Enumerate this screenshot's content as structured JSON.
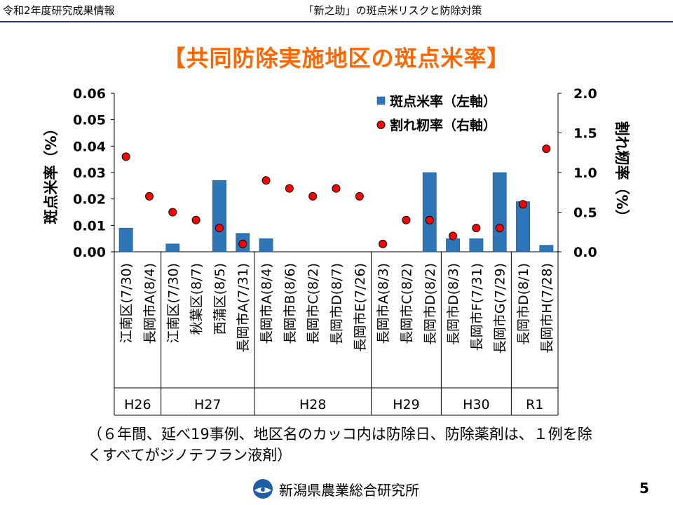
{
  "header": {
    "left": "令和2年度研究成果情報",
    "center": "「新之助」の斑点米リスクと防除対策"
  },
  "title": "【共同防除実施地区の斑点米率】",
  "caption": "（６年間、延べ19事例、地区名のカッコ内は防除日、防除薬剤は、１例を除くすべてがジノテフラン液剤）",
  "footer": {
    "org": "新潟県農業総合研究所",
    "page": "5"
  },
  "colors": {
    "bar": "#2e75b6",
    "marker": "#ff0000",
    "title": "#ff6600",
    "header_rule": "#1f3864"
  },
  "chart_data": {
    "type": "bar",
    "categories": [
      "江南区(7/30)",
      "長岡市A(8/4)",
      "江南区(7/30)",
      "秋葉区(8/7)",
      "西蒲区(8/5)",
      "長岡市A(7/31)",
      "長岡市A(8/4)",
      "長岡市B(8/6)",
      "長岡市C(8/2)",
      "長岡市D(8/7)",
      "長岡市E(7/26)",
      "長岡市A(8/3)",
      "長岡市C(8/2)",
      "長岡市D(8/2)",
      "長岡市D(8/3)",
      "長岡市F(7/31)",
      "長岡市G(7/29)",
      "長岡市D(8/1)",
      "長岡市H(7/28)"
    ],
    "groups": [
      {
        "label": "H26",
        "count": 2
      },
      {
        "label": "H27",
        "count": 4
      },
      {
        "label": "H28",
        "count": 5
      },
      {
        "label": "H29",
        "count": 3
      },
      {
        "label": "H30",
        "count": 3
      },
      {
        "label": "R1",
        "count": 2
      }
    ],
    "series": [
      {
        "name": "斑点米率（左軸）",
        "kind": "bar",
        "axis": "left",
        "values": [
          0.009,
          0,
          0.003,
          0,
          0.027,
          0.007,
          0.005,
          0,
          0,
          0,
          0,
          0,
          0,
          0.03,
          0.005,
          0.005,
          0.03,
          0.019,
          0.0025
        ]
      },
      {
        "name": "割れ籾率（右軸）",
        "kind": "marker",
        "axis": "right",
        "values": [
          1.2,
          0.7,
          0.5,
          0.4,
          0.3,
          0.1,
          0.9,
          0.8,
          0.7,
          0.8,
          0.7,
          0.1,
          0.4,
          0.4,
          0.2,
          0.3,
          0.3,
          0.6,
          1.3
        ]
      }
    ],
    "ylabel_left": "斑点米率（%）",
    "ylabel_right": "割れ籾率（%）",
    "ylim_left": [
      0,
      0.06
    ],
    "yticks_left": [
      "0.00",
      "0.01",
      "0.02",
      "0.03",
      "0.04",
      "0.05",
      "0.06"
    ],
    "ylim_right": [
      0,
      2.0
    ],
    "yticks_right": [
      "0.0",
      "0.5",
      "1.0",
      "1.5",
      "2.0"
    ],
    "legend_position": "top-right",
    "grid": false
  }
}
